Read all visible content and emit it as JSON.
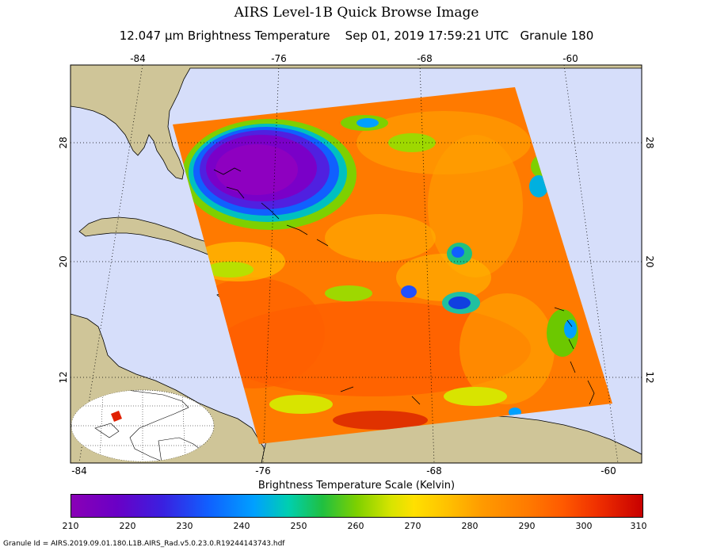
{
  "title": "AIRS Level-1B Quick Browse Image",
  "subtitle": "12.047 µm Brightness Temperature    Sep 01, 2019 17:59:21 UTC   Granule 180",
  "map": {
    "lon_labels_top": [
      "-84",
      "-76",
      "-68",
      "-60"
    ],
    "lon_labels_bottom": [
      "-84",
      "-76",
      "-68",
      "-60"
    ],
    "lat_labels_left": [
      "28",
      "20",
      "12"
    ],
    "lat_labels_right": [
      "28",
      "20",
      "12"
    ]
  },
  "colorbar": {
    "title": "Brightness Temperature Scale (Kelvin)",
    "ticks": [
      "210",
      "220",
      "230",
      "240",
      "250",
      "260",
      "270",
      "280",
      "290",
      "300",
      "310"
    ]
  },
  "footer": "Granule Id = AIRS.2019.09.01.180.L1B.AIRS_Rad.v5.0.23.0.R19244143743.hdf",
  "colors": {
    "ocean": "#d6defa",
    "land": "#cfc598",
    "swath_base": "#ff7a00"
  }
}
